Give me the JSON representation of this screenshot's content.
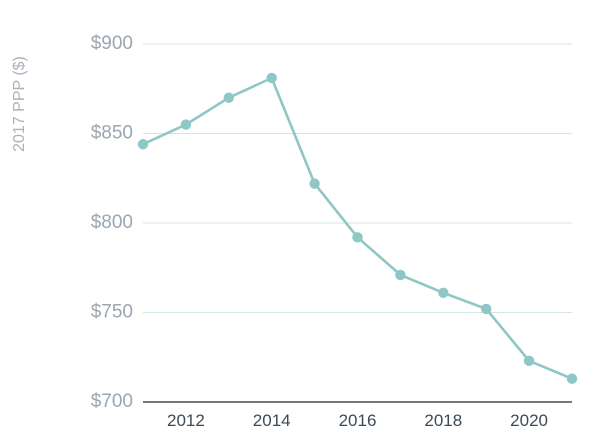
{
  "chart_data": {
    "type": "line",
    "title": "",
    "xlabel": "",
    "ylabel": "2017 PPP ($)",
    "x": [
      2011,
      2012,
      2013,
      2014,
      2015,
      2016,
      2017,
      2018,
      2019,
      2020,
      2021
    ],
    "series": [
      {
        "values": [
          844,
          855,
          870,
          881,
          822,
          792,
          771,
          761,
          752,
          723,
          713
        ]
      }
    ],
    "xlim": [
      2011,
      2021
    ],
    "ylim": [
      700,
      900
    ],
    "x_ticks": [
      2012,
      2014,
      2016,
      2018,
      2020
    ],
    "x_tick_labels": [
      "2012",
      "2014",
      "2016",
      "2018",
      "2020"
    ],
    "y_ticks": [
      700,
      750,
      800,
      850,
      900
    ],
    "y_tick_labels": [
      "$700",
      "$750",
      "$800",
      "$850",
      "$900"
    ],
    "grid": "horizontal",
    "colors": {
      "series": "#8ec7c5",
      "grid": "#d3e6e2",
      "axis": "#1f2a33"
    }
  }
}
